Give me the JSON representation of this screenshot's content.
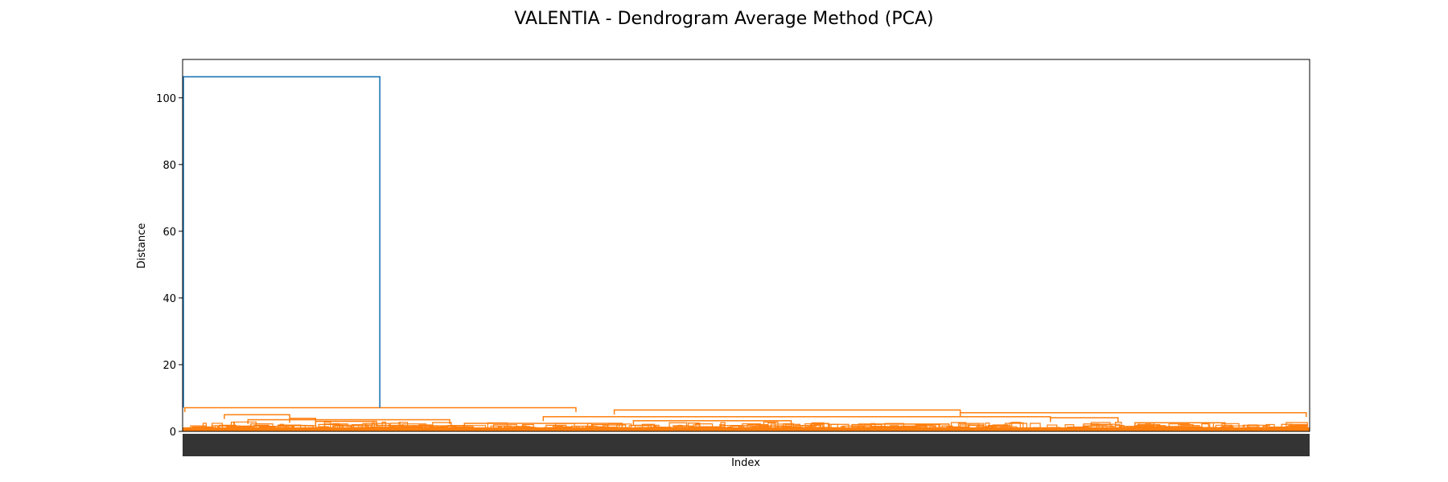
{
  "chart_data": {
    "type": "dendrogram",
    "title": "VALENTIA - Dendrogram Average Method (PCA)",
    "xlabel": "Index",
    "ylabel": "Distance",
    "ylim": [
      0,
      111.5
    ],
    "yticks": [
      0,
      20,
      40,
      60,
      80,
      100
    ],
    "grid": false,
    "legend": "none",
    "colors": {
      "root": "#1f77b4",
      "cluster": "#ff7f0e",
      "axis": "#000000"
    },
    "root_merge": {
      "height": 106.3,
      "left_index_fraction": 0.0,
      "right_index_fraction": 0.175
    },
    "cluster_links": [
      {
        "height": 7.1,
        "from": 0.002,
        "to": 0.349
      },
      {
        "height": 6.4,
        "from": 0.383,
        "to": 0.69
      },
      {
        "height": 5.6,
        "from": 0.69,
        "to": 0.997
      },
      {
        "height": 5.0,
        "from": 0.037,
        "to": 0.095
      },
      {
        "height": 4.4,
        "from": 0.32,
        "to": 0.77
      },
      {
        "height": 4.1,
        "from": 0.77,
        "to": 0.83
      },
      {
        "height": 3.9,
        "from": 0.095,
        "to": 0.118
      },
      {
        "height": 3.5,
        "from": 0.058,
        "to": 0.237
      },
      {
        "height": 3.2,
        "from": 0.4,
        "to": 0.54
      },
      {
        "height": 3.0,
        "from": 0.118,
        "to": 0.172
      },
      {
        "height": 2.6,
        "from": 0.845,
        "to": 0.925
      },
      {
        "height": 2.4,
        "from": 0.25,
        "to": 0.39
      },
      {
        "height": 2.2,
        "from": 0.6,
        "to": 0.68
      }
    ],
    "leaf_label_note": "illegible"
  }
}
